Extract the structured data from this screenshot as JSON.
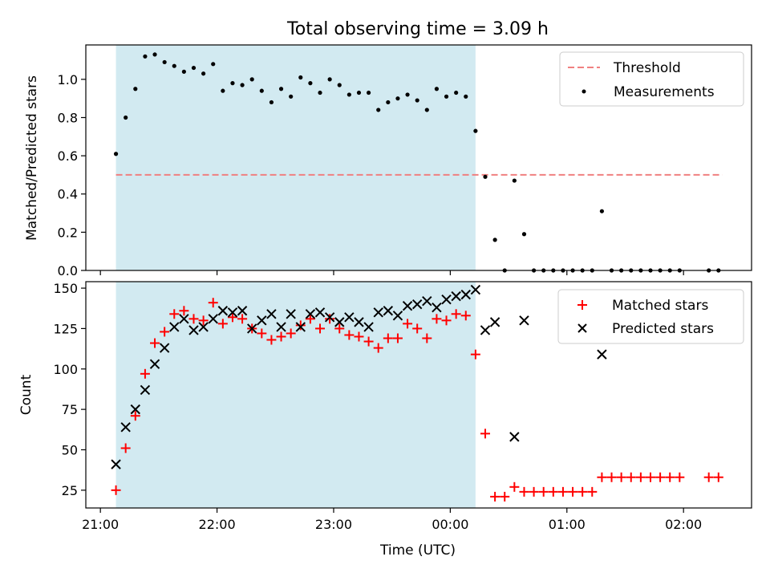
{
  "figure": {
    "title": "Total observing time = 3.09 h",
    "xlabel": "Time (UTC)",
    "x_ticks": [
      "21:00",
      "22:00",
      "23:00",
      "00:00",
      "01:00",
      "02:00"
    ],
    "x_tick_minutes": [
      0,
      60,
      120,
      180,
      240,
      300
    ],
    "shaded_span_minutes": [
      8,
      193
    ],
    "shade_color": "#add8e6"
  },
  "chart_data": [
    {
      "type": "scatter",
      "ylabel": "Matched/Predicted stars",
      "ylim": [
        0,
        1.18
      ],
      "xlim": [
        -7.5,
        335
      ],
      "grid": false,
      "legend_position": "top-right",
      "y_ticks": [
        "0.0",
        "0.2",
        "0.4",
        "0.6",
        "0.8",
        "1.0"
      ],
      "y_tick_values": [
        0,
        0.2,
        0.4,
        0.6,
        0.8,
        1.0
      ],
      "threshold": {
        "name": "Threshold",
        "value": 0.5,
        "x_range": [
          8,
          320
        ],
        "color": "#f08080",
        "style": "dashed"
      },
      "series": [
        {
          "name": "Measurements",
          "color": "#000000",
          "marker": "dot",
          "x": [
            8,
            13,
            18,
            23,
            28,
            33,
            38,
            43,
            48,
            53,
            58,
            63,
            68,
            73,
            78,
            83,
            88,
            93,
            98,
            103,
            108,
            113,
            118,
            123,
            128,
            133,
            138,
            143,
            148,
            153,
            158,
            163,
            168,
            173,
            178,
            183,
            188,
            193,
            198,
            203,
            208,
            213,
            218,
            223,
            228,
            233,
            238,
            243,
            248,
            253,
            258,
            263,
            268,
            273,
            278,
            283,
            288,
            293,
            298,
            313,
            318
          ],
          "y": [
            0.61,
            0.8,
            0.95,
            1.12,
            1.13,
            1.09,
            1.07,
            1.04,
            1.06,
            1.03,
            1.08,
            0.94,
            0.98,
            0.97,
            1.0,
            0.94,
            0.88,
            0.95,
            0.91,
            1.01,
            0.98,
            0.93,
            1.0,
            0.97,
            0.92,
            0.93,
            0.93,
            0.84,
            0.88,
            0.9,
            0.92,
            0.89,
            0.84,
            0.95,
            0.91,
            0.93,
            0.91,
            0.73,
            0.49,
            0.16,
            0.0,
            0.47,
            0.19,
            0.0,
            0.0,
            0.0,
            0.0,
            0.0,
            0.0,
            0.0,
            0.31,
            0.0,
            0.0,
            0.0,
            0.0,
            0.0,
            0.0,
            0.0,
            0.0,
            0.0,
            0.0
          ]
        }
      ]
    },
    {
      "type": "scatter",
      "ylabel": "Count",
      "ylim": [
        14,
        154
      ],
      "xlim": [
        -7.5,
        335
      ],
      "grid": false,
      "legend_position": "top-right",
      "y_ticks": [
        "25",
        "50",
        "75",
        "100",
        "125",
        "150"
      ],
      "y_tick_values": [
        25,
        50,
        75,
        100,
        125,
        150
      ],
      "series": [
        {
          "name": "Matched stars",
          "color": "#ff0000",
          "marker": "plus",
          "x": [
            8,
            13,
            18,
            23,
            28,
            33,
            38,
            43,
            48,
            53,
            58,
            63,
            68,
            73,
            78,
            83,
            88,
            93,
            98,
            103,
            108,
            113,
            118,
            123,
            128,
            133,
            138,
            143,
            148,
            153,
            158,
            163,
            168,
            173,
            178,
            183,
            188,
            193,
            198,
            203,
            208,
            213,
            218,
            223,
            228,
            233,
            238,
            243,
            248,
            253,
            258,
            263,
            268,
            273,
            278,
            283,
            288,
            293,
            298,
            313,
            318
          ],
          "y": [
            25,
            51,
            71,
            97,
            116,
            123,
            134,
            136,
            131,
            130,
            141,
            128,
            132,
            131,
            125,
            122,
            118,
            120,
            122,
            127,
            131,
            125,
            131,
            125,
            121,
            120,
            117,
            113,
            119,
            119,
            128,
            125,
            119,
            131,
            130,
            134,
            133,
            109,
            60,
            21,
            21,
            27,
            24,
            24,
            24,
            24,
            24,
            24,
            24,
            24,
            33,
            33,
            33,
            33,
            33,
            33,
            33,
            33,
            33,
            33,
            33
          ]
        },
        {
          "name": "Predicted stars",
          "color": "#000000",
          "marker": "x",
          "x": [
            8,
            13,
            18,
            23,
            28,
            33,
            38,
            43,
            48,
            53,
            58,
            63,
            68,
            73,
            78,
            83,
            88,
            93,
            98,
            103,
            108,
            113,
            118,
            123,
            128,
            133,
            138,
            143,
            148,
            153,
            158,
            163,
            168,
            173,
            178,
            183,
            188,
            193,
            198,
            203,
            213,
            218,
            258
          ],
          "y": [
            41,
            64,
            75,
            87,
            103,
            113,
            126,
            131,
            124,
            126,
            131,
            136,
            135,
            136,
            125,
            130,
            134,
            126,
            134,
            126,
            134,
            135,
            132,
            129,
            132,
            129,
            126,
            135,
            136,
            133,
            139,
            140,
            142,
            138,
            143,
            145,
            146,
            149,
            124,
            129,
            58,
            130,
            109
          ]
        }
      ]
    }
  ]
}
